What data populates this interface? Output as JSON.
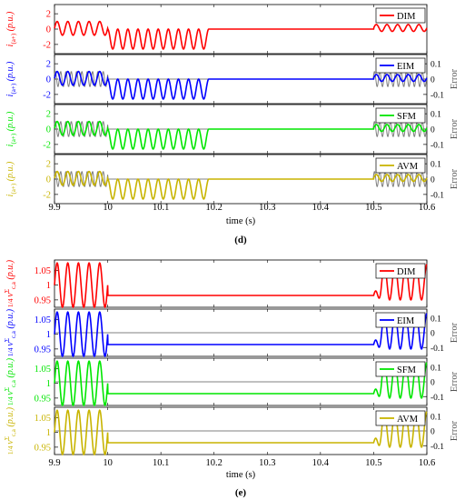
{
  "chart_data": [
    {
      "type": "line",
      "caption": "(d)",
      "xlabel": "time (s)",
      "x_ticks": [
        "9.9",
        "10",
        "10.1",
        "10.2",
        "10.3",
        "10.4",
        "10.5",
        "10.6"
      ],
      "xlim": [
        9.9,
        10.6
      ],
      "right_axis_label": "Error",
      "panels": [
        {
          "ylabel": "i(a+) (p.u.)",
          "ylabel_base": "i",
          "ylabel_sub": "(a+)",
          "ylabel_unit": "(p.u.)",
          "color": "#ff0000",
          "legend": "DIM",
          "ylim": [
            -3.2,
            3.2
          ],
          "y_ticks": [
            "2",
            "0",
            "-2"
          ],
          "y_tick_values": [
            2,
            0,
            -2
          ],
          "has_error_axis": false,
          "error_ticks": [],
          "error_tick_values": [],
          "error_ylim": [
            -0.16,
            0.16
          ]
        },
        {
          "ylabel": "i(a+) (p.u.)",
          "ylabel_base": "i",
          "ylabel_sub": "(a+)",
          "ylabel_unit": "(p.u.)",
          "color": "#0000ff",
          "legend": "EIM",
          "ylim": [
            -3.2,
            3.2
          ],
          "y_ticks": [
            "2",
            "0",
            "-2"
          ],
          "y_tick_values": [
            2,
            0,
            -2
          ],
          "has_error_axis": true,
          "error_ticks": [
            "0.1",
            "0",
            "-0.1"
          ],
          "error_tick_values": [
            0.1,
            0,
            -0.1
          ],
          "error_ylim": [
            -0.16,
            0.16
          ]
        },
        {
          "ylabel": "i(a+) (p.u.)",
          "ylabel_base": "i",
          "ylabel_sub": "(a+)",
          "ylabel_unit": "(p.u.)",
          "color": "#00e600",
          "legend": "SFM",
          "ylim": [
            -3.2,
            3.2
          ],
          "y_ticks": [
            "2",
            "0",
            "-2"
          ],
          "y_tick_values": [
            2,
            0,
            -2
          ],
          "has_error_axis": true,
          "error_ticks": [
            "0.1",
            "0",
            "-0.1"
          ],
          "error_tick_values": [
            0.1,
            0,
            -0.1
          ],
          "error_ylim": [
            -0.16,
            0.16
          ]
        },
        {
          "ylabel": "i(a+) (p.u.)",
          "ylabel_base": "i",
          "ylabel_sub": "(a+)",
          "ylabel_unit": "(p.u.)",
          "color": "#c8b400",
          "legend": "AVM",
          "ylim": [
            -3.2,
            3.2
          ],
          "y_ticks": [
            "2",
            "0",
            "-2"
          ],
          "y_tick_values": [
            2,
            0,
            -2
          ],
          "has_error_axis": true,
          "error_ticks": [
            "0.1",
            "0",
            "-0.1"
          ],
          "error_tick_values": [
            0.1,
            0,
            -0.1
          ],
          "error_ylim": [
            -0.16,
            0.16
          ]
        }
      ],
      "signal": {
        "segments": [
          {
            "x_start": 9.9,
            "x_end": 10.0,
            "kind": "sine",
            "offset": 0.1,
            "amplitude": 0.9,
            "cycles": 5
          },
          {
            "x_start": 10.0,
            "x_end": 10.19,
            "kind": "dips",
            "top": 0.0,
            "bottom": -2.6,
            "cycles": 10
          },
          {
            "x_start": 10.19,
            "x_end": 10.5,
            "kind": "flat",
            "value": 0.0
          },
          {
            "x_start": 10.5,
            "x_end": 10.6,
            "kind": "sine",
            "offset": 0.15,
            "amplitude": 0.45,
            "cycles": 5
          }
        ]
      },
      "error_signal": {
        "color": "#808080",
        "segments": [
          {
            "x_start": 9.9,
            "x_end": 10.0,
            "amplitude": 0.05,
            "cycles": 5
          },
          {
            "x_start": 10.5,
            "x_end": 10.6,
            "amplitude": 0.05,
            "cycles": 5
          }
        ]
      }
    },
    {
      "type": "line",
      "caption": "(e)",
      "xlabel": "time (s)",
      "x_ticks": [
        "9.9",
        "10",
        "10.1",
        "10.2",
        "10.3",
        "10.4",
        "10.5",
        "10.6"
      ],
      "xlim": [
        9.9,
        10.6
      ],
      "right_axis_label": "Error",
      "panels": [
        {
          "ylabel": "(1/4) vΣc,a (p.u.)",
          "ylabel_base": "v",
          "ylabel_sub": "c,a",
          "ylabel_sup": "Σ",
          "ylabel_frac": "1/4",
          "ylabel_unit": "(p.u.)",
          "color": "#ff0000",
          "legend": "DIM",
          "ylim": [
            0.925,
            1.085
          ],
          "y_ticks": [
            "1.05",
            "1",
            "0.95"
          ],
          "y_tick_values": [
            1.05,
            1.0,
            0.95
          ],
          "has_error_axis": false,
          "error_ticks": [],
          "error_tick_values": [],
          "error_ylim": [
            -0.16,
            0.16
          ]
        },
        {
          "ylabel": "(1/4) vΣc,a (p.u.)",
          "ylabel_base": "v",
          "ylabel_sub": "c,a",
          "ylabel_sup": "Σ",
          "ylabel_frac": "1/4",
          "ylabel_unit": "(p.u.)",
          "color": "#0000ff",
          "legend": "EIM",
          "ylim": [
            0.925,
            1.085
          ],
          "y_ticks": [
            "1.05",
            "1",
            "0.95"
          ],
          "y_tick_values": [
            1.05,
            1.0,
            0.95
          ],
          "has_error_axis": true,
          "error_ticks": [
            "0.1",
            "0",
            "-0.1"
          ],
          "error_tick_values": [
            0.1,
            0,
            -0.1
          ],
          "error_ylim": [
            -0.16,
            0.16
          ]
        },
        {
          "ylabel": "(1/4) vΣc,a (p.u.)",
          "ylabel_base": "v",
          "ylabel_sub": "c,a",
          "ylabel_sup": "Σ",
          "ylabel_frac": "1/4",
          "ylabel_unit": "(p.u.)",
          "color": "#00e600",
          "legend": "SFM",
          "ylim": [
            0.925,
            1.085
          ],
          "y_ticks": [
            "1.05",
            "1",
            "0.95"
          ],
          "y_tick_values": [
            1.05,
            1.0,
            0.95
          ],
          "has_error_axis": true,
          "error_ticks": [
            "0.1",
            "0",
            "-0.1"
          ],
          "error_tick_values": [
            0.1,
            0,
            -0.1
          ],
          "error_ylim": [
            -0.16,
            0.16
          ]
        },
        {
          "ylabel": "(1/4) vΣc,a (p.u.)",
          "ylabel_base": "v",
          "ylabel_sub": "c,a",
          "ylabel_sup": "Σ",
          "ylabel_frac": "1/4",
          "ylabel_unit": "(p.u.)",
          "color": "#c8b400",
          "legend": "AVM",
          "ylim": [
            0.925,
            1.085
          ],
          "y_ticks": [
            "1.05",
            "1",
            "0.95"
          ],
          "y_tick_values": [
            1.05,
            1.0,
            0.95
          ],
          "has_error_axis": true,
          "error_ticks": [
            "0.1",
            "0",
            "-0.1"
          ],
          "error_tick_values": [
            0.1,
            0,
            -0.1
          ],
          "error_ylim": [
            -0.16,
            0.16
          ]
        }
      ],
      "signal": {
        "segments": [
          {
            "x_start": 9.9,
            "x_end": 10.0,
            "kind": "sine",
            "offset": 1.0,
            "amplitude": 0.075,
            "cycles": 5
          },
          {
            "x_start": 10.0,
            "x_end": 10.5,
            "kind": "flat",
            "value": 0.965
          },
          {
            "x_start": 10.5,
            "x_end": 10.6,
            "kind": "rise_sine",
            "offset": 1.01,
            "amplitude": 0.06,
            "cycles": 5,
            "start_value": 0.965
          }
        ]
      },
      "error_signal": {
        "color": "#808080",
        "segments": []
      }
    }
  ]
}
